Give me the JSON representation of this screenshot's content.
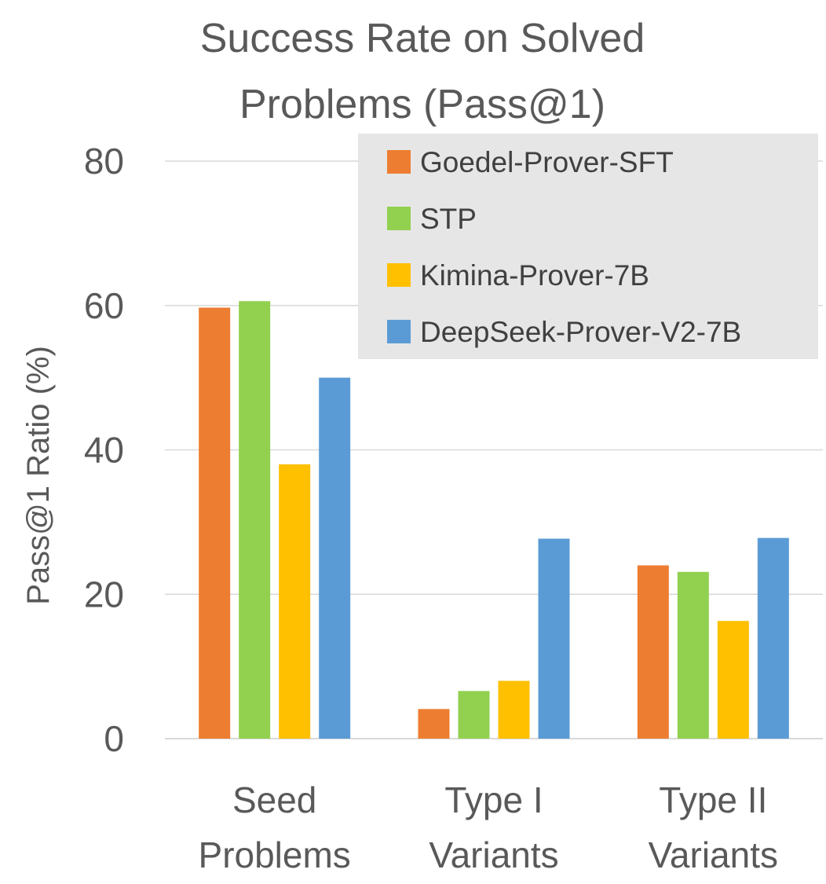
{
  "chart_data": {
    "type": "bar",
    "title_lines": [
      "Success Rate on Solved",
      "Problems (Pass@1)"
    ],
    "xlabel": "",
    "ylabel": "Pass@1 Ratio (%)",
    "ylim": [
      0,
      80
    ],
    "yticks": [
      0,
      20,
      40,
      60,
      80
    ],
    "grid": true,
    "legend_position": "top-right",
    "categories": [
      [
        "Seed",
        "Problems"
      ],
      [
        "Type I",
        "Variants"
      ],
      [
        "Type II",
        "Variants"
      ]
    ],
    "series": [
      {
        "name": "Goedel-Prover-SFT",
        "color": "#ED7D31",
        "values": [
          59.7,
          4.1,
          24.0
        ]
      },
      {
        "name": "STP",
        "color": "#92D050",
        "values": [
          60.6,
          6.6,
          23.1
        ]
      },
      {
        "name": "Kimina-Prover-7B",
        "color": "#FFC000",
        "values": [
          38.0,
          8.0,
          16.3
        ]
      },
      {
        "name": "DeepSeek-Prover-V2-7B",
        "color": "#5B9BD5",
        "values": [
          50.0,
          27.7,
          27.8
        ]
      }
    ]
  }
}
